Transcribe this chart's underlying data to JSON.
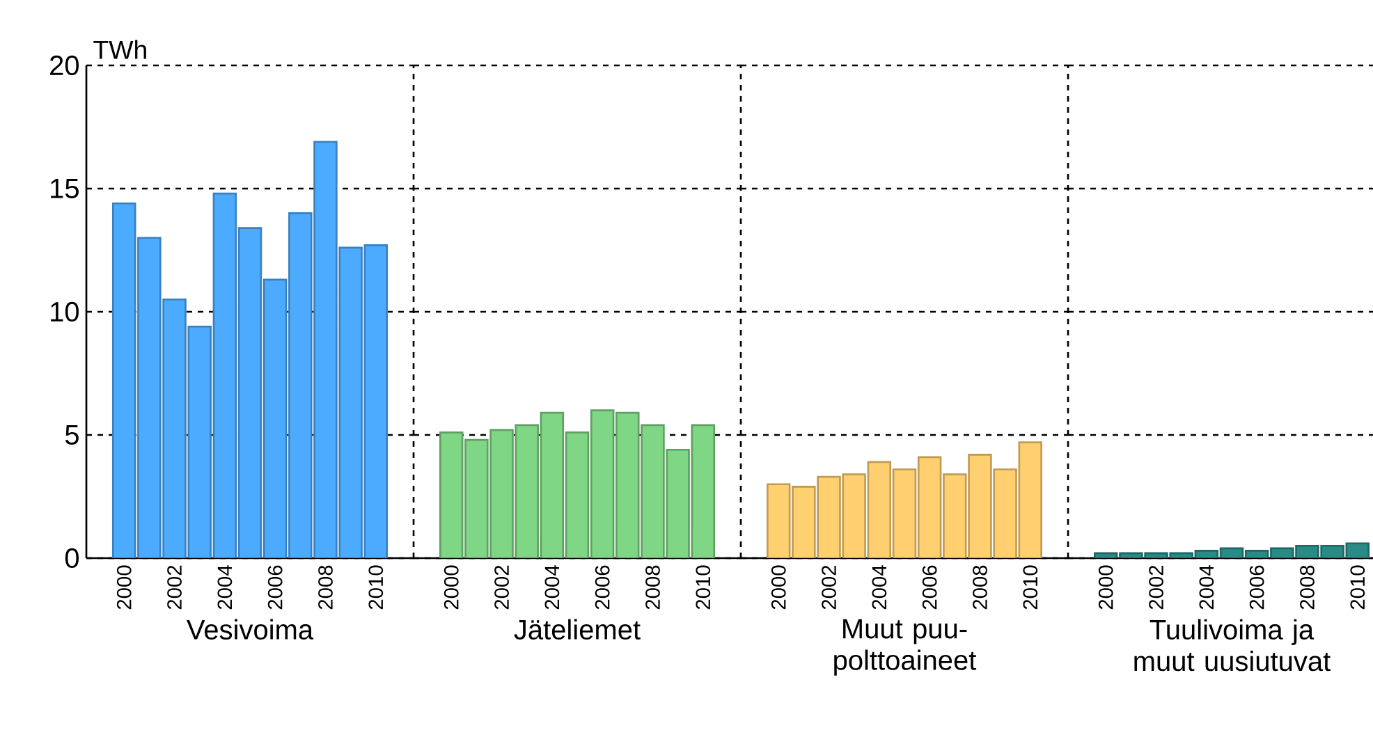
{
  "chart_data": [
    {
      "type": "bar",
      "ylabel": "TWh",
      "xlabel": "Vesivoima",
      "categories": [
        "2000",
        null,
        "2002",
        null,
        "2004",
        null,
        "2006",
        null,
        "2008",
        null,
        "2010"
      ],
      "values": [
        14.4,
        13.0,
        10.5,
        9.4,
        14.8,
        13.4,
        11.3,
        14.0,
        16.9,
        12.6,
        12.7
      ],
      "color": "#4dabff",
      "ylim": [
        0,
        20
      ],
      "yticks": [
        0,
        5,
        10,
        15,
        20
      ],
      "grid": "y"
    },
    {
      "type": "bar",
      "xlabel": "Jäteliemet",
      "categories": [
        "2000",
        null,
        "2002",
        null,
        "2004",
        null,
        "2006",
        null,
        "2008",
        null,
        "2010"
      ],
      "values": [
        5.1,
        4.8,
        5.2,
        5.4,
        5.9,
        5.1,
        6.0,
        5.9,
        5.4,
        4.4,
        5.4
      ],
      "color": "#7fd685",
      "ylim": [
        0,
        20
      ],
      "yticks": [
        0,
        5,
        10,
        15,
        20
      ],
      "grid": "y",
      "tick_labels": "x"
    },
    {
      "type": "bar",
      "xlabel": "Muut puu-polttoaineet",
      "categories": [
        "2000",
        null,
        "2002",
        null,
        "2004",
        null,
        "2006",
        null,
        "2008",
        null,
        "2010"
      ],
      "values": [
        3.0,
        2.9,
        3.3,
        3.4,
        3.9,
        3.6,
        4.1,
        3.4,
        4.2,
        3.6,
        4.7
      ],
      "color": "#ffcf70",
      "ylim": [
        0,
        20
      ],
      "yticks": [
        0,
        5,
        10,
        15,
        20
      ],
      "grid": "y",
      "tick_labels": "x"
    },
    {
      "type": "bar",
      "xlabel": "Tuulivoima ja muut uusiutuvat",
      "categories": [
        "2000",
        null,
        "2002",
        null,
        "2004",
        null,
        "2006",
        null,
        "2008",
        null,
        "2010"
      ],
      "values": [
        0.2,
        0.2,
        0.2,
        0.2,
        0.3,
        0.4,
        0.3,
        0.4,
        0.5,
        0.5,
        0.6
      ],
      "color": "#2a8a85",
      "ylim": [
        0,
        20
      ],
      "yticks": [
        0,
        5,
        10,
        15,
        20
      ],
      "grid": "y",
      "tick_labels": "x"
    }
  ]
}
